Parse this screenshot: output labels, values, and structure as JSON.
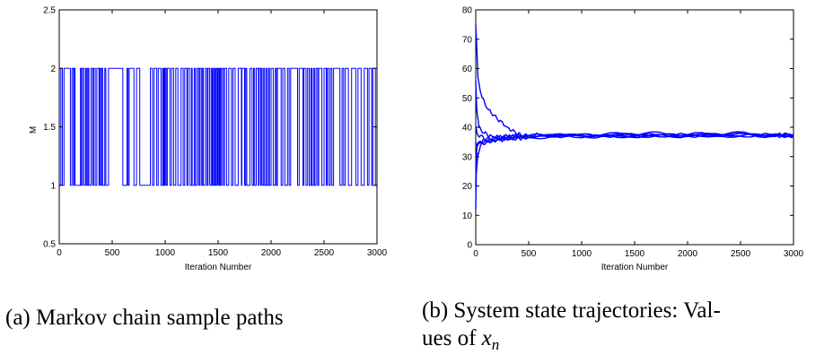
{
  "colors": {
    "series": "#0000ff",
    "axes": "#000000"
  },
  "chart_data": [
    {
      "type": "line",
      "xlabel": "Iteration Number",
      "ylabel": "M",
      "xlim": [
        0,
        3000
      ],
      "ylim": [
        0.5,
        2.5
      ],
      "xticks": [
        "0",
        "500",
        "1000",
        "1500",
        "2000",
        "2500",
        "3000"
      ],
      "yticks": [
        "0.5",
        "1",
        "1.5",
        "2",
        "2.5"
      ],
      "grid": false,
      "caption": "(a) Markov chain sample paths",
      "switch_points": [
        0,
        15,
        30,
        45,
        105,
        120,
        135,
        140,
        150,
        200,
        210,
        220,
        235,
        250,
        260,
        270,
        280,
        300,
        315,
        325,
        340,
        355,
        375,
        380,
        390,
        400,
        410,
        430,
        440,
        465,
        600,
        640,
        650,
        660,
        705,
        730,
        760,
        860,
        880,
        895,
        920,
        935,
        960,
        975,
        985,
        990,
        995,
        1000,
        1010,
        1020,
        1045,
        1060,
        1080,
        1100,
        1120,
        1150,
        1170,
        1185,
        1205,
        1215,
        1235,
        1250,
        1255,
        1275,
        1285,
        1300,
        1315,
        1325,
        1340,
        1350,
        1360,
        1380,
        1395,
        1405,
        1420,
        1435,
        1445,
        1455,
        1460,
        1470,
        1475,
        1485,
        1495,
        1500,
        1510,
        1515,
        1525,
        1535,
        1550,
        1560,
        1580,
        1600,
        1625,
        1640,
        1660,
        1690,
        1720,
        1725,
        1750,
        1760,
        1770,
        1800,
        1820,
        1835,
        1845,
        1860,
        1880,
        1885,
        1900,
        1905,
        1915,
        1930,
        1940,
        1955,
        1960,
        1975,
        1985,
        2000,
        2020,
        2040,
        2050,
        2060,
        2095,
        2110,
        2130,
        2155,
        2170,
        2185,
        2250,
        2265,
        2300,
        2310,
        2330,
        2345,
        2360,
        2375,
        2385,
        2400,
        2410,
        2425,
        2440,
        2450,
        2480,
        2500,
        2520,
        2530,
        2545,
        2560,
        2575,
        2590,
        2650,
        2670,
        2685,
        2700,
        2730,
        2760,
        2800,
        2820,
        2850,
        2880,
        2910,
        2925,
        2950,
        2960,
        2985,
        3000
      ],
      "initial_state": 1,
      "states": [
        1,
        2
      ]
    },
    {
      "type": "line",
      "xlabel": "Iteration Number",
      "ylabel": "",
      "xlim": [
        0,
        3000
      ],
      "ylim": [
        0,
        80
      ],
      "xticks": [
        "0",
        "500",
        "1000",
        "1500",
        "2000",
        "2500",
        "3000"
      ],
      "yticks": [
        "0",
        "10",
        "20",
        "30",
        "40",
        "50",
        "60",
        "70",
        "80"
      ],
      "grid": false,
      "caption_parts": [
        "(b) System state trajectories: Val-",
        "ues of "
      ],
      "caption_math": "x",
      "caption_sub": "n",
      "converged_value": 37,
      "series": [
        {
          "x": [
            0,
            20,
            60,
            120,
            200,
            300,
            380,
            420,
            500,
            800,
            1200,
            1600,
            2000,
            2400,
            2800,
            3000
          ],
          "values": [
            75,
            57,
            50,
            46,
            43,
            40,
            38,
            37.5,
            37,
            37,
            37.5,
            38,
            37.5,
            38,
            37.5,
            37.5
          ]
        },
        {
          "x": [
            0,
            10,
            30,
            80,
            150,
            250,
            350,
            500,
            800,
            1200,
            1600,
            2000,
            2400,
            2800,
            3000
          ],
          "values": [
            56,
            46,
            40,
            38,
            37,
            36.5,
            37,
            37,
            37.5,
            37,
            37.5,
            37,
            37.5,
            37,
            37
          ]
        },
        {
          "x": [
            0,
            5,
            20,
            50,
            100,
            200,
            350,
            500,
            800,
            1200,
            1600,
            2000,
            2400,
            2800,
            3000
          ],
          "values": [
            12,
            24,
            31,
            34,
            35,
            35.5,
            36,
            36.5,
            37,
            37,
            37,
            37.5,
            37,
            37.5,
            37
          ]
        },
        {
          "x": [
            0,
            5,
            15,
            40,
            100,
            200,
            350,
            500,
            800,
            1200,
            1600,
            2000,
            2400,
            2800,
            3000
          ],
          "values": [
            20,
            30,
            34,
            35,
            35.5,
            36,
            36.5,
            37,
            36.5,
            37,
            37,
            37,
            37.5,
            37,
            37.5
          ]
        },
        {
          "x": [
            0,
            10,
            30,
            60,
            120,
            250,
            400,
            600,
            900,
            1300,
            1700,
            2100,
            2500,
            2900,
            3000
          ],
          "values": [
            35,
            34,
            34.5,
            35,
            35,
            36,
            36.5,
            37,
            37.5,
            37,
            37.5,
            37,
            38,
            37,
            37
          ]
        },
        {
          "x": [
            0,
            10,
            40,
            100,
            200,
            300,
            450,
            600,
            900,
            1300,
            1700,
            2100,
            2500,
            2900,
            3000
          ],
          "values": [
            40,
            38,
            37,
            36,
            36.5,
            37,
            37,
            37.5,
            37,
            37.5,
            37,
            37.5,
            37,
            37.5,
            37
          ]
        }
      ]
    }
  ]
}
